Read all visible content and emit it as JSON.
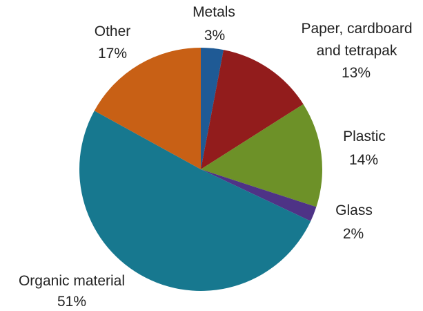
{
  "chart_data": {
    "type": "pie",
    "title": "",
    "start_angle_deg": 0,
    "direction": "clockwise",
    "legend": "none",
    "slices": [
      {
        "id": "metals",
        "label_lines": [
          "Metals"
        ],
        "value": 3,
        "value_label": "3%",
        "color": "#1f5a95"
      },
      {
        "id": "paper",
        "label_lines": [
          "Paper, cardboard",
          "and tetrapak"
        ],
        "value": 13,
        "value_label": "13%",
        "color": "#921c1c"
      },
      {
        "id": "plastic",
        "label_lines": [
          "Plastic"
        ],
        "value": 14,
        "value_label": "14%",
        "color": "#6d9128"
      },
      {
        "id": "glass",
        "label_lines": [
          "Glass"
        ],
        "value": 2,
        "value_label": "2%",
        "color": "#4e3386"
      },
      {
        "id": "organic",
        "label_lines": [
          "Organic material"
        ],
        "value": 51,
        "value_label": "51%",
        "color": "#17788f"
      },
      {
        "id": "other",
        "label_lines": [
          "Other"
        ],
        "value": 17,
        "value_label": "17%",
        "color": "#c86015"
      }
    ]
  }
}
